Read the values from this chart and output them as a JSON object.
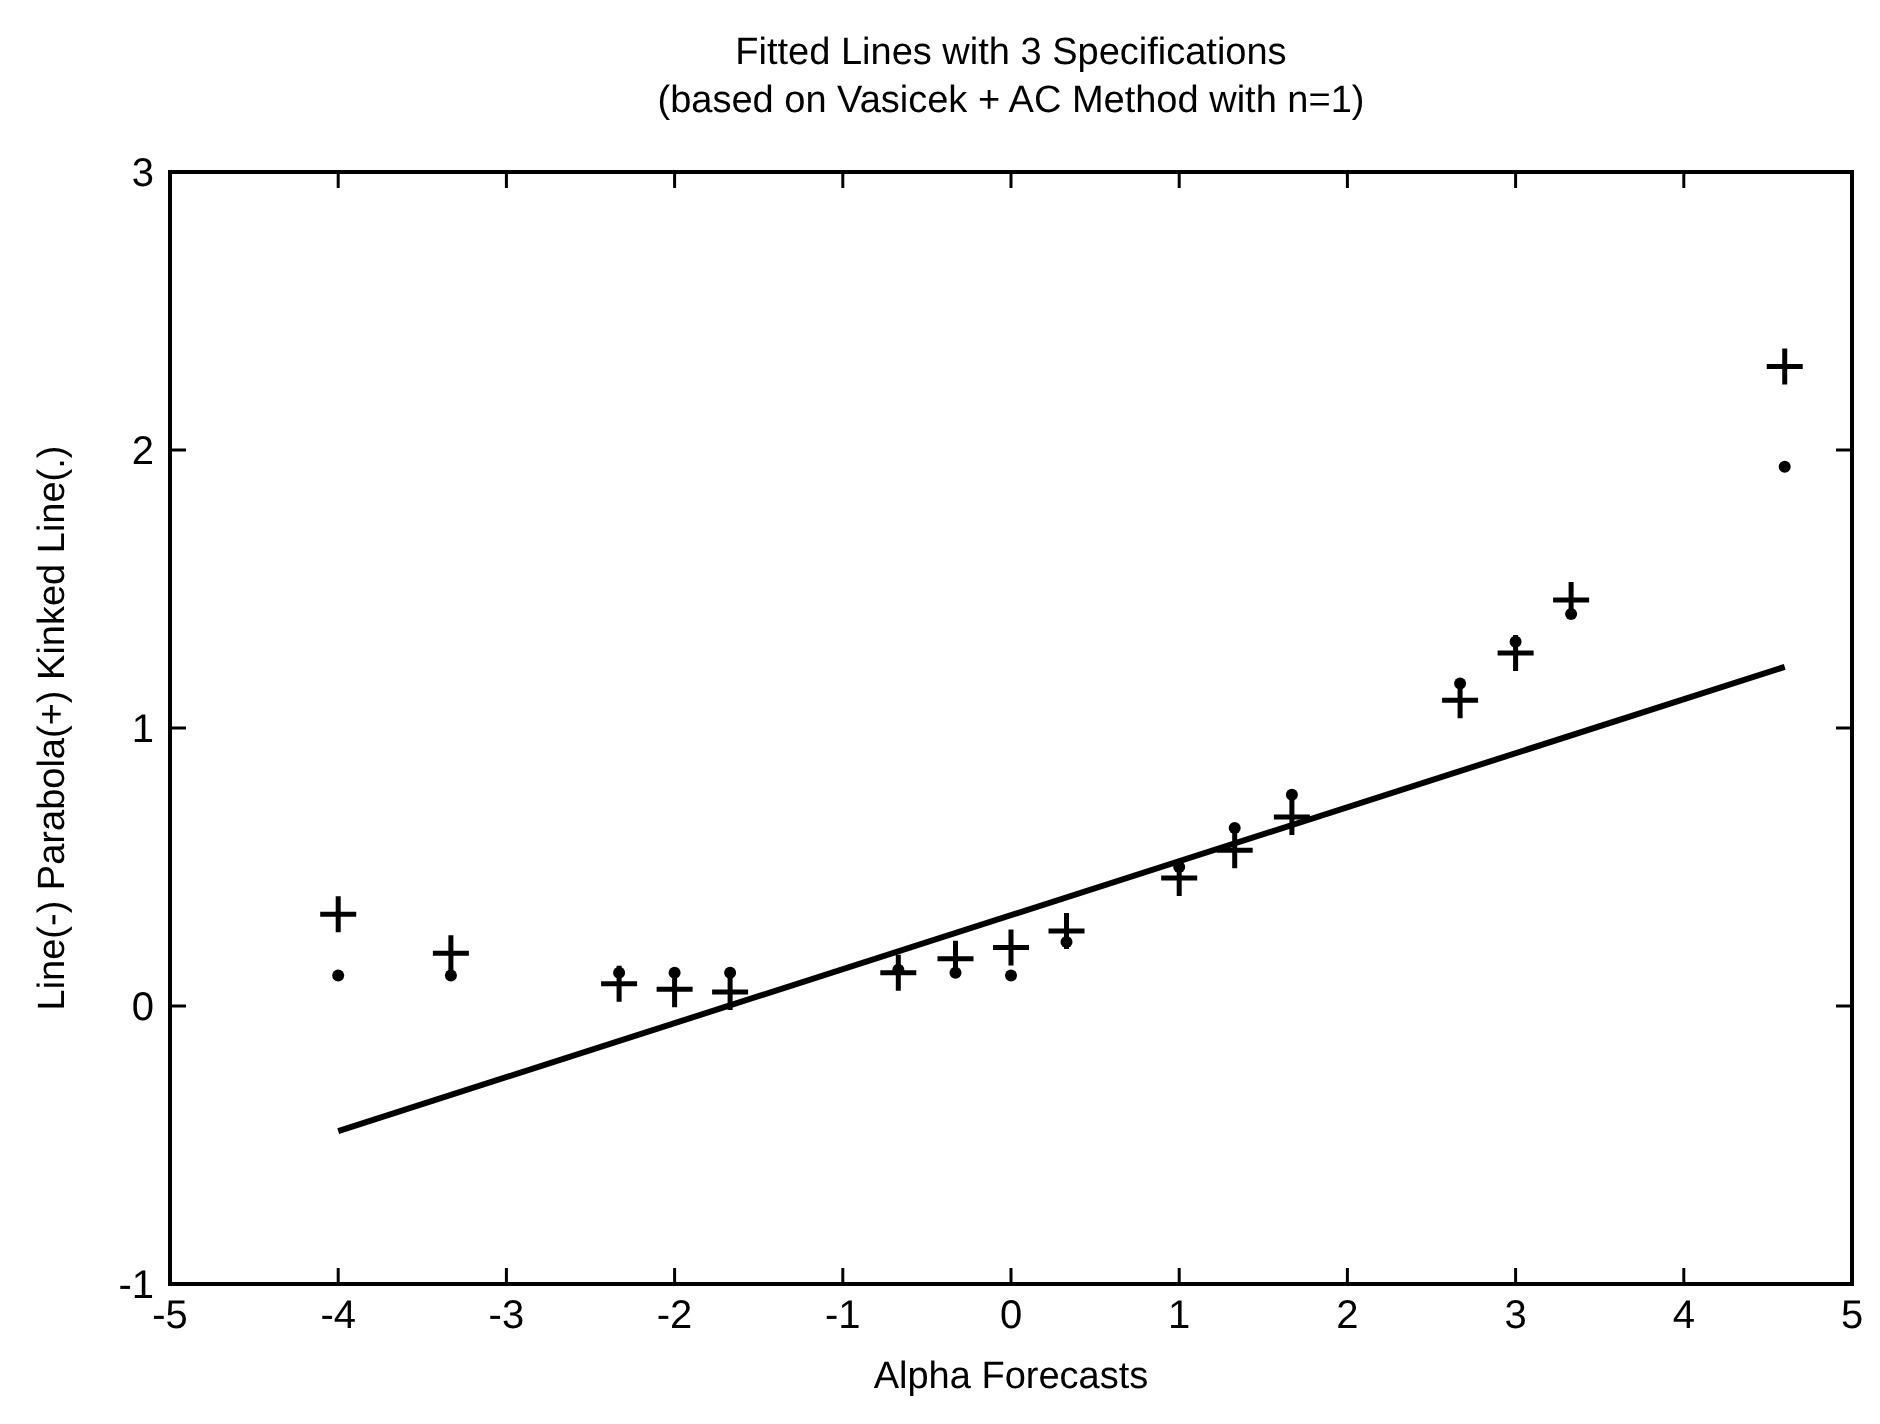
{
  "chart_data": {
    "type": "scatter",
    "title": "Fitted Lines with 3 Specifications",
    "subtitle": "(based on Vasicek + AC Method with n=1)",
    "xlabel": "Alpha Forecasts",
    "ylabel": "Line(-) Parabola(+) Kinked Line(.)",
    "x": [
      -4,
      -3.33,
      -2.33,
      -2,
      -1.67,
      -0.67,
      -0.33,
      0,
      0.33,
      1,
      1.33,
      1.67,
      2.67,
      3,
      3.33,
      4.6
    ],
    "series": [
      {
        "type": "line",
        "color": "#000000",
        "x": [
          -4,
          4.6
        ],
        "values": [
          -0.45,
          1.22
        ],
        "marker": "none",
        "line_style": "solid"
      },
      {
        "color": "#000000",
        "marker": "cross",
        "values": [
          0.33,
          0.19,
          0.08,
          0.06,
          0.05,
          0.12,
          0.17,
          0.21,
          0.27,
          0.46,
          0.56,
          0.68,
          1.1,
          1.27,
          1.46,
          2.3
        ]
      },
      {
        "color": "#000000",
        "marker": "circle",
        "values": [
          0.11,
          0.11,
          0.12,
          0.12,
          0.12,
          0.13,
          0.12,
          0.11,
          0.23,
          0.5,
          0.64,
          0.76,
          1.16,
          1.31,
          1.41,
          1.94
        ]
      }
    ],
    "xlim": [
      -5,
      5
    ],
    "xticks": [
      -5,
      -4,
      -3,
      -2,
      -1,
      0,
      1,
      2,
      3,
      4,
      5
    ],
    "ylim": [
      -1,
      3
    ],
    "yticks": [
      -1,
      0,
      1,
      2,
      3
    ],
    "grid": false
  }
}
